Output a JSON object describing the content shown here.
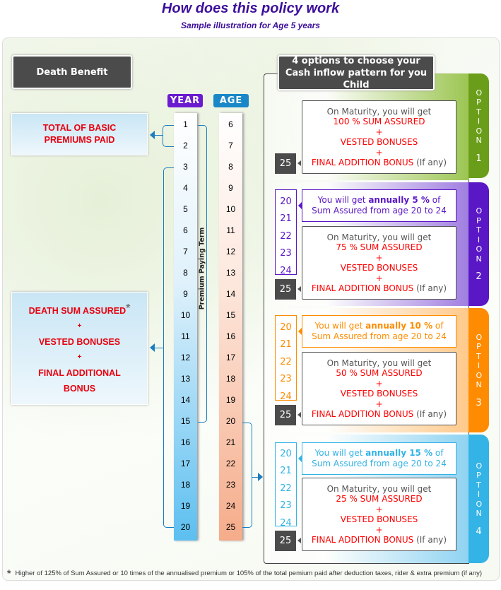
{
  "title": "How does this policy work",
  "subtitle": "Sample illustration for Age 5 years",
  "death_benefit": "Death Benefit",
  "options_header": "4 options to choose your Cash inflow pattern for you Child",
  "year_label": "YEAR",
  "age_label": "AGE",
  "years": [
    "1",
    "2",
    "3",
    "4",
    "5",
    "6",
    "7",
    "8",
    "9",
    "10",
    "11",
    "12",
    "13",
    "14",
    "15",
    "16",
    "17",
    "18",
    "19",
    "20"
  ],
  "ages": [
    "6",
    "7",
    "8",
    "9",
    "10",
    "11",
    "12",
    "13",
    "14",
    "15",
    "16",
    "17",
    "18",
    "19",
    "20",
    "21",
    "22",
    "23",
    "24",
    "25"
  ],
  "premium_paying_term": "Premium Paying Term",
  "total_premiums": {
    "line1": "TOTAL OF BASIC",
    "line2": "PREMIUMS PAID"
  },
  "death_sum": {
    "line1": "DEATH SUM ASSURED",
    "star": "*",
    "plus1": "+",
    "line2": "VESTED BONUSES",
    "plus2": "+",
    "line3": "FINAL ADDITIONAL",
    "line4": "BONUS"
  },
  "options": [
    {
      "tab": "OPTION",
      "number": "1",
      "color": "#6a9e1a",
      "light": "#9cc552",
      "annual": null,
      "maturity_age": "25",
      "maturity": {
        "intro": "On Maturity, you will get",
        "sum": "100 % SUM ASSURED",
        "plus": "+",
        "vested": "VESTED BONUSES",
        "final": "FINAL ADDITION BONUS",
        "if_any": "(If any)"
      }
    },
    {
      "tab": "OPTION",
      "number": "2",
      "color": "#5a17c6",
      "light": "#a07ee0",
      "annual": {
        "pre": "You will get ",
        "bold": "annually 5 %",
        "post": " of",
        "line2": "Sum Assured from age 20 to 24"
      },
      "payout_ages": [
        "20",
        "21",
        "22",
        "23",
        "24"
      ],
      "maturity_age": "25",
      "maturity": {
        "intro": "On Maturity, you will get",
        "sum": "75 % SUM ASSURED",
        "plus": "+",
        "vested": "VESTED BONUSES",
        "final": "FINAL ADDITION BONUS",
        "if_any": "(If any)"
      }
    },
    {
      "tab": "OPTION",
      "number": "3",
      "color": "#ff8c00",
      "light": "#ffc98a",
      "annual": {
        "pre": "You will get ",
        "bold": "annually 10 %",
        "post": " of",
        "line2": "Sum Assured from age 20 to 24"
      },
      "payout_ages": [
        "20",
        "21",
        "22",
        "23",
        "24"
      ],
      "maturity_age": "25",
      "maturity": {
        "intro": "On Maturity, you will get",
        "sum": "50 % SUM ASSURED",
        "plus": "+",
        "vested": "VESTED BONUSES",
        "final": "FINAL ADDITION BONUS",
        "if_any": "(If any)"
      }
    },
    {
      "tab": "OPTION",
      "number": "4",
      "color": "#34b3e6",
      "light": "#8fd3f2",
      "annual": {
        "pre": "You will get ",
        "bold": "annually 15 %",
        "post": " of",
        "line2": "Sum Assured from age 20 to 24"
      },
      "payout_ages": [
        "20",
        "21",
        "22",
        "23",
        "24"
      ],
      "maturity_age": "25",
      "maturity": {
        "intro": "On Maturity, you will get",
        "sum": "25 % SUM ASSURED",
        "plus": "+",
        "vested": "VESTED BONUSES",
        "final": "FINAL ADDITION BONUS",
        "if_any": "(If any)"
      }
    }
  ],
  "footnote": {
    "star": "*",
    "text": "Higher of 125% of Sum Assured or 10 times of the annualised premium or 105% of the total pemium paid after deduction taxes, rider & extra premium (if any)"
  }
}
